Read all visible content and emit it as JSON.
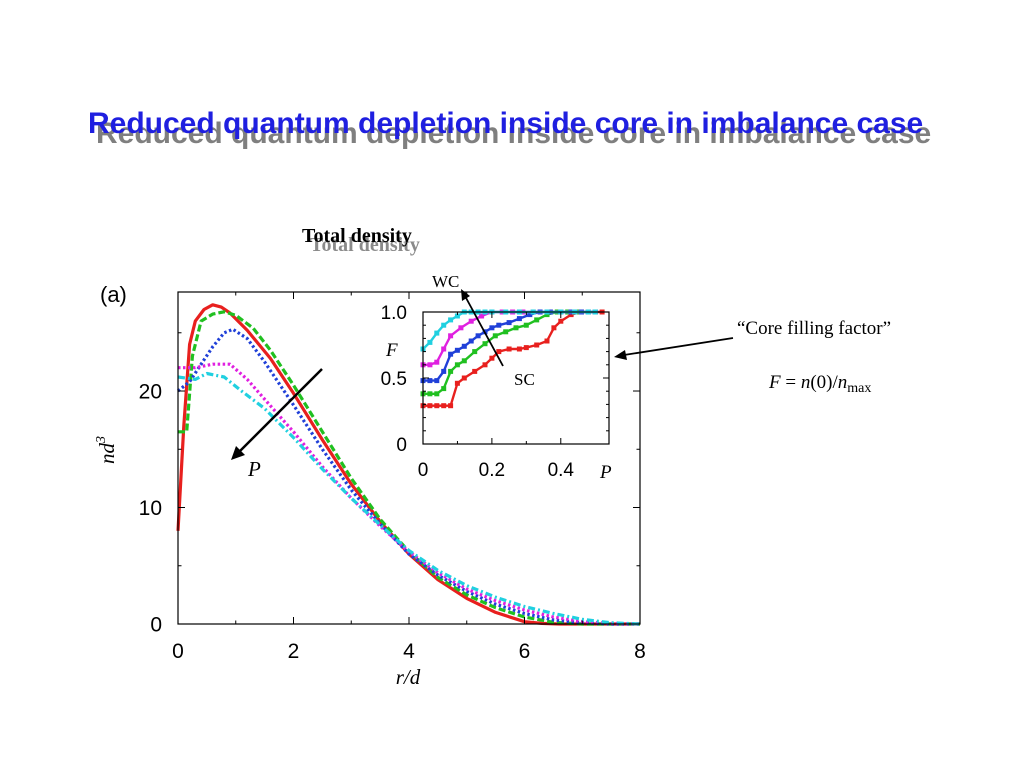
{
  "slide": {
    "title": "Reduced quantum depletion inside core in imbalance case"
  },
  "figure": {
    "heading": "Total density",
    "panel_label": "(a)",
    "arrow_label": "P",
    "inset_arrow_top": "WC",
    "inset_arrow_bottom": "SC"
  },
  "annotation": {
    "caption": "“Core filling factor”",
    "formula_F": "F",
    "formula_eq": " = ",
    "formula_n": "n",
    "formula_arg": "(0)/",
    "formula_n2": "n",
    "formula_sub": "max"
  },
  "colors": {
    "title": "#1f1fe0",
    "title_shadow": "#7f7f7f"
  },
  "chart_data": [
    {
      "type": "line",
      "xlabel": "r/d",
      "ylabel": "nd3",
      "ylabel_base": "nd",
      "ylabel_sup": "3",
      "xlim": [
        0,
        8
      ],
      "ylim": [
        0,
        28.5
      ],
      "xticks": [
        0,
        2,
        4,
        6,
        8
      ],
      "yticks": [
        0,
        10,
        20
      ],
      "grid": false,
      "series": [
        {
          "color": "#e8201e",
          "style": "solid",
          "x": [
            0,
            0.1,
            0.2,
            0.3,
            0.45,
            0.6,
            0.75,
            0.9,
            1.2,
            1.6,
            2.0,
            2.5,
            3.0,
            3.5,
            4.0,
            4.5,
            5.0,
            5.5,
            6.0,
            6.3,
            6.6,
            7.0,
            8.0
          ],
          "y": [
            8.0,
            17.0,
            24.0,
            26.0,
            27.0,
            27.4,
            27.2,
            26.7,
            25.2,
            22.8,
            19.8,
            15.8,
            12.0,
            8.8,
            6.0,
            3.8,
            2.2,
            1.0,
            0.2,
            0.05,
            0.0,
            0.0,
            0.0
          ]
        },
        {
          "color": "#20c020",
          "style": "dashed",
          "x": [
            0,
            0.15,
            0.25,
            0.4,
            0.6,
            0.8,
            1.0,
            1.3,
            1.6,
            2.0,
            2.5,
            3.0,
            3.5,
            4.0,
            4.5,
            5.0,
            5.5,
            6.0,
            6.5,
            7.0,
            7.5,
            8.0
          ],
          "y": [
            16.5,
            16.5,
            23.0,
            26.0,
            26.6,
            26.8,
            26.5,
            25.4,
            23.5,
            20.5,
            16.5,
            12.5,
            9.0,
            6.2,
            4.0,
            2.5,
            1.4,
            0.6,
            0.15,
            0.0,
            0.0,
            0.0
          ]
        },
        {
          "color": "#2040d8",
          "style": "dotted",
          "x": [
            0,
            0.2,
            0.4,
            0.6,
            0.8,
            0.95,
            1.2,
            1.5,
            2.0,
            2.5,
            3.0,
            3.5,
            4.0,
            4.5,
            5.0,
            5.5,
            6.0,
            6.5,
            7.0,
            7.5,
            8.0
          ],
          "y": [
            20.0,
            20.8,
            22.3,
            23.8,
            25.0,
            25.3,
            24.5,
            22.5,
            18.8,
            15.0,
            11.5,
            8.6,
            6.0,
            4.2,
            2.8,
            1.7,
            0.9,
            0.35,
            0.1,
            0.0,
            0.0
          ]
        },
        {
          "color": "#e020e0",
          "style": "dotted",
          "x": [
            0,
            0.3,
            0.6,
            0.9,
            1.2,
            1.5,
            2.0,
            2.5,
            3.0,
            3.5,
            4.0,
            4.5,
            5.0,
            5.5,
            6.0,
            6.5,
            7.0,
            7.5,
            8.0
          ],
          "y": [
            22.0,
            22.0,
            22.3,
            22.3,
            21.0,
            19.3,
            16.5,
            13.5,
            10.8,
            8.4,
            6.2,
            4.4,
            3.0,
            2.0,
            1.2,
            0.6,
            0.2,
            0.05,
            0.0
          ]
        },
        {
          "color": "#20d0e0",
          "style": "dashdot",
          "x": [
            0,
            0.3,
            0.5,
            0.8,
            1.1,
            1.5,
            2.0,
            2.5,
            3.0,
            3.5,
            4.0,
            4.5,
            5.0,
            5.5,
            6.0,
            6.5,
            7.0,
            7.5,
            8.0
          ],
          "y": [
            21.2,
            21.0,
            21.5,
            21.2,
            20.0,
            18.5,
            16.0,
            13.3,
            10.8,
            8.5,
            6.3,
            4.6,
            3.3,
            2.3,
            1.5,
            0.9,
            0.4,
            0.1,
            0.0
          ]
        }
      ]
    },
    {
      "type": "line",
      "xlabel": "P",
      "ylabel": "F",
      "xlim": [
        0,
        0.54
      ],
      "ylim": [
        0,
        1.0
      ],
      "xticks": [
        0,
        0.2,
        0.4
      ],
      "xtick_labels": [
        "0",
        "0.2",
        "0.4"
      ],
      "yticks": [
        0,
        0.5,
        1.0
      ],
      "ytick_labels": [
        "0",
        "0.5",
        "1.0"
      ],
      "grid": false,
      "series": [
        {
          "color": "#e8201e",
          "x": [
            0,
            0.02,
            0.04,
            0.06,
            0.08,
            0.1,
            0.12,
            0.15,
            0.18,
            0.2,
            0.22,
            0.25,
            0.28,
            0.3,
            0.33,
            0.36,
            0.38,
            0.4,
            0.43,
            0.46,
            0.5,
            0.52
          ],
          "y": [
            0.29,
            0.29,
            0.29,
            0.29,
            0.29,
            0.46,
            0.5,
            0.55,
            0.6,
            0.65,
            0.7,
            0.72,
            0.72,
            0.73,
            0.75,
            0.78,
            0.88,
            0.93,
            0.98,
            1.0,
            1.0,
            1.0
          ]
        },
        {
          "color": "#20c020",
          "x": [
            0,
            0.02,
            0.04,
            0.06,
            0.08,
            0.1,
            0.12,
            0.15,
            0.18,
            0.21,
            0.24,
            0.27,
            0.3,
            0.33,
            0.36,
            0.39,
            0.42,
            0.45,
            0.48,
            0.5
          ],
          "y": [
            0.38,
            0.38,
            0.38,
            0.42,
            0.55,
            0.6,
            0.63,
            0.7,
            0.76,
            0.82,
            0.85,
            0.88,
            0.9,
            0.94,
            0.98,
            1.0,
            1.0,
            1.0,
            1.0,
            1.0
          ]
        },
        {
          "color": "#2040d8",
          "x": [
            0,
            0.02,
            0.04,
            0.06,
            0.08,
            0.1,
            0.12,
            0.14,
            0.16,
            0.18,
            0.2,
            0.22,
            0.25,
            0.28,
            0.31,
            0.34,
            0.37,
            0.4,
            0.43,
            0.46,
            0.5
          ],
          "y": [
            0.48,
            0.48,
            0.48,
            0.55,
            0.68,
            0.71,
            0.74,
            0.78,
            0.82,
            0.85,
            0.88,
            0.9,
            0.92,
            0.95,
            0.98,
            1.0,
            1.0,
            1.0,
            1.0,
            1.0,
            1.0
          ]
        },
        {
          "color": "#e020e0",
          "x": [
            0,
            0.02,
            0.04,
            0.06,
            0.08,
            0.11,
            0.14,
            0.17,
            0.2,
            0.23,
            0.26,
            0.29,
            0.32,
            0.36,
            0.4,
            0.44,
            0.48,
            0.5
          ],
          "y": [
            0.6,
            0.6,
            0.62,
            0.72,
            0.82,
            0.88,
            0.93,
            0.97,
            1.0,
            1.0,
            1.0,
            1.0,
            1.0,
            1.0,
            1.0,
            1.0,
            1.0,
            1.0
          ]
        },
        {
          "color": "#20d0e0",
          "x": [
            0,
            0.02,
            0.04,
            0.06,
            0.08,
            0.1,
            0.12,
            0.14,
            0.16,
            0.18,
            0.2,
            0.24,
            0.28,
            0.32,
            0.36,
            0.4,
            0.44,
            0.48,
            0.5
          ],
          "y": [
            0.72,
            0.77,
            0.84,
            0.9,
            0.94,
            0.97,
            1.0,
            1.0,
            1.0,
            1.0,
            1.0,
            1.0,
            1.0,
            1.0,
            1.0,
            1.0,
            1.0,
            1.0,
            1.0
          ]
        }
      ]
    }
  ]
}
